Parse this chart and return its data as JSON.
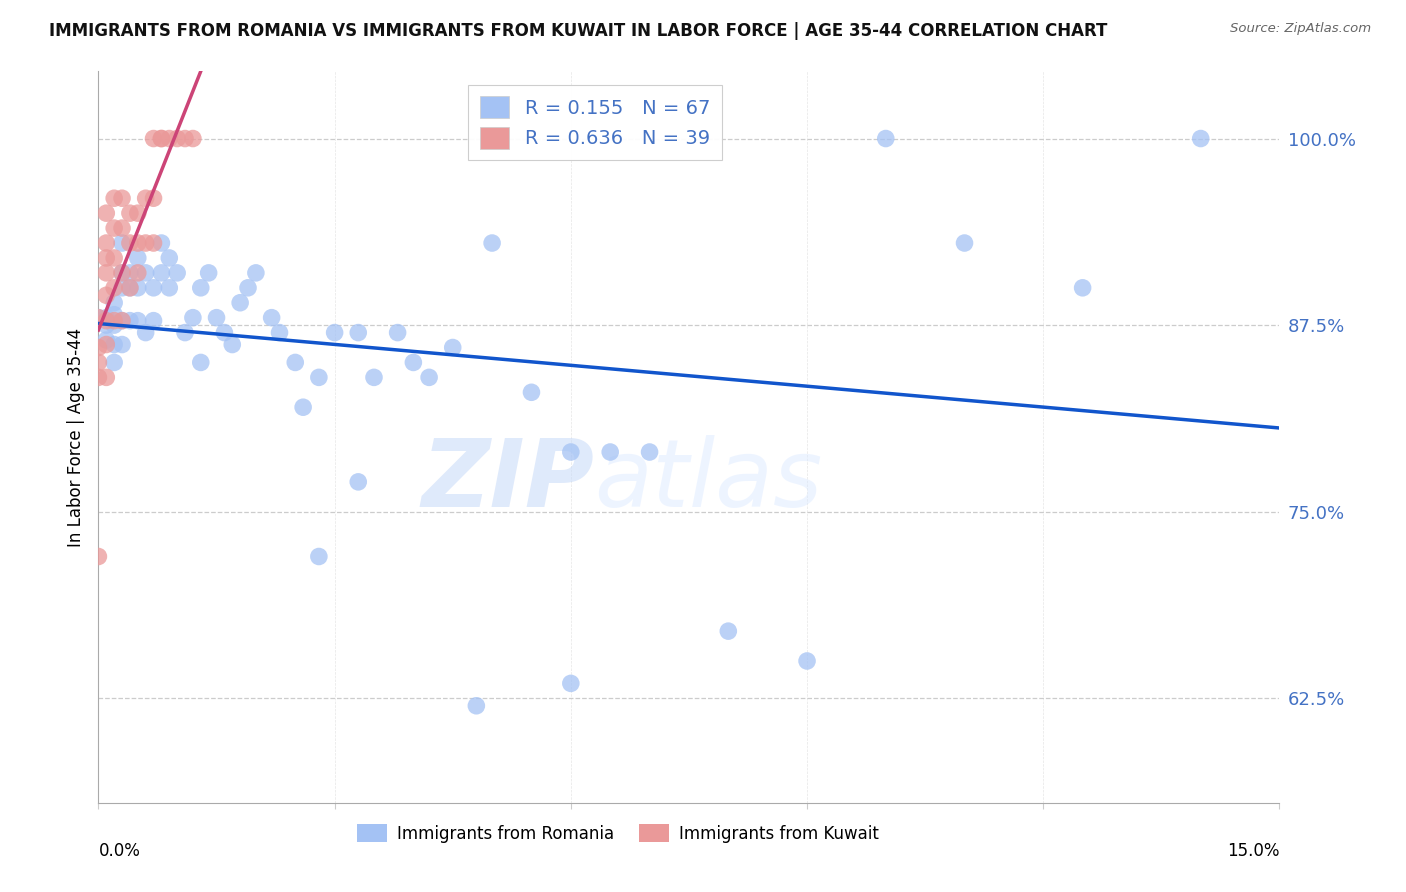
{
  "title": "IMMIGRANTS FROM ROMANIA VS IMMIGRANTS FROM KUWAIT IN LABOR FORCE | AGE 35-44 CORRELATION CHART",
  "source": "Source: ZipAtlas.com",
  "ylabel": "In Labor Force | Age 35-44",
  "yticks": [
    0.625,
    0.75,
    0.875,
    1.0
  ],
  "ytick_labels": [
    "62.5%",
    "75.0%",
    "87.5%",
    "100.0%"
  ],
  "xmin": 0.0,
  "xmax": 0.15,
  "ymin": 0.555,
  "ymax": 1.045,
  "watermark_zip": "ZIP",
  "watermark_atlas": "atlas",
  "legend_romania": "Immigrants from Romania",
  "legend_kuwait": "Immigrants from Kuwait",
  "R_romania": "0.155",
  "N_romania": "67",
  "R_kuwait": "0.636",
  "N_kuwait": "39",
  "color_romania": "#a4c2f4",
  "color_kuwait": "#ea9999",
  "color_line_romania": "#1155cc",
  "color_line_kuwait": "#cc4477",
  "romania_x": [
    0.0,
    0.001,
    0.001,
    0.001,
    0.002,
    0.002,
    0.002,
    0.002,
    0.002,
    0.003,
    0.003,
    0.003,
    0.003,
    0.003,
    0.004,
    0.004,
    0.004,
    0.005,
    0.005,
    0.005,
    0.006,
    0.006,
    0.007,
    0.007,
    0.008,
    0.008,
    0.009,
    0.009,
    0.01,
    0.011,
    0.012,
    0.013,
    0.013,
    0.014,
    0.015,
    0.016,
    0.017,
    0.018,
    0.019,
    0.02,
    0.022,
    0.023,
    0.025,
    0.026,
    0.028,
    0.03,
    0.033,
    0.035,
    0.038,
    0.04,
    0.042,
    0.045,
    0.05,
    0.055,
    0.06,
    0.065,
    0.07,
    0.08,
    0.09,
    0.1,
    0.11,
    0.125,
    0.14,
    0.028,
    0.033,
    0.048,
    0.06
  ],
  "romania_y": [
    0.88,
    0.88,
    0.875,
    0.865,
    0.89,
    0.882,
    0.875,
    0.862,
    0.85,
    0.93,
    0.91,
    0.9,
    0.878,
    0.862,
    0.91,
    0.9,
    0.878,
    0.92,
    0.9,
    0.878,
    0.91,
    0.87,
    0.9,
    0.878,
    0.93,
    0.91,
    0.92,
    0.9,
    0.91,
    0.87,
    0.88,
    0.9,
    0.85,
    0.91,
    0.88,
    0.87,
    0.862,
    0.89,
    0.9,
    0.91,
    0.88,
    0.87,
    0.85,
    0.82,
    0.84,
    0.87,
    0.87,
    0.84,
    0.87,
    0.85,
    0.84,
    0.86,
    0.93,
    0.83,
    0.79,
    0.79,
    0.79,
    0.67,
    0.65,
    1.0,
    0.93,
    0.9,
    1.0,
    0.72,
    0.77,
    0.62,
    0.635
  ],
  "kuwait_x": [
    0.0,
    0.0,
    0.0,
    0.0,
    0.0,
    0.001,
    0.001,
    0.001,
    0.001,
    0.001,
    0.001,
    0.001,
    0.001,
    0.002,
    0.002,
    0.002,
    0.002,
    0.002,
    0.003,
    0.003,
    0.003,
    0.003,
    0.004,
    0.004,
    0.004,
    0.005,
    0.005,
    0.005,
    0.006,
    0.006,
    0.007,
    0.007,
    0.007,
    0.008,
    0.008,
    0.009,
    0.01,
    0.011,
    0.012
  ],
  "kuwait_y": [
    0.88,
    0.86,
    0.84,
    0.72,
    0.85,
    0.95,
    0.93,
    0.92,
    0.91,
    0.895,
    0.878,
    0.862,
    0.84,
    0.96,
    0.94,
    0.92,
    0.9,
    0.878,
    0.96,
    0.94,
    0.91,
    0.878,
    0.95,
    0.93,
    0.9,
    0.95,
    0.93,
    0.91,
    0.96,
    0.93,
    0.96,
    0.93,
    1.0,
    1.0,
    1.0,
    1.0,
    1.0,
    1.0,
    1.0
  ]
}
